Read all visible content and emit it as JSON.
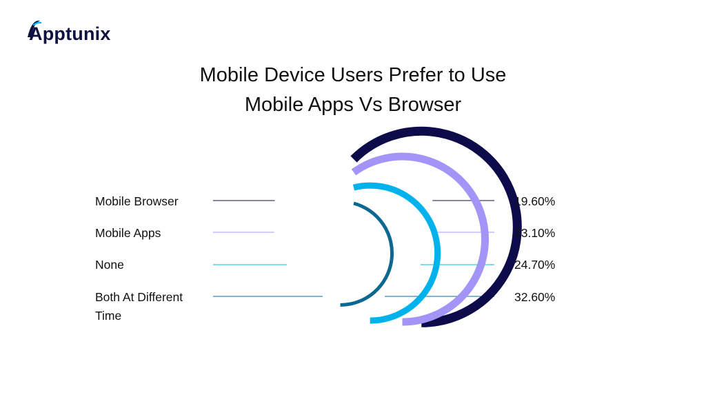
{
  "brand": {
    "logo_text": "Apptunix",
    "logo_color": "#0f1140"
  },
  "title_lines": [
    "Mobile Device Users Prefer to Use",
    "Mobile Apps Vs Browser"
  ],
  "chart_data": {
    "type": "radial-bar",
    "title": "Mobile Device Users Prefer to Use Mobile Apps Vs Browser",
    "categories": [
      "Mobile Browser",
      "Mobile Apps",
      "None",
      "Both At Different Time"
    ],
    "values": [
      19.6,
      23.1,
      24.7,
      32.6
    ],
    "value_labels": [
      "19.60%",
      "23.10%",
      "24.70%",
      "32.60%"
    ],
    "colors": [
      "#0d0b4a",
      "#a395f7",
      "#00b2ec",
      "#0c6791"
    ],
    "legend_position": "left",
    "grid": false
  }
}
